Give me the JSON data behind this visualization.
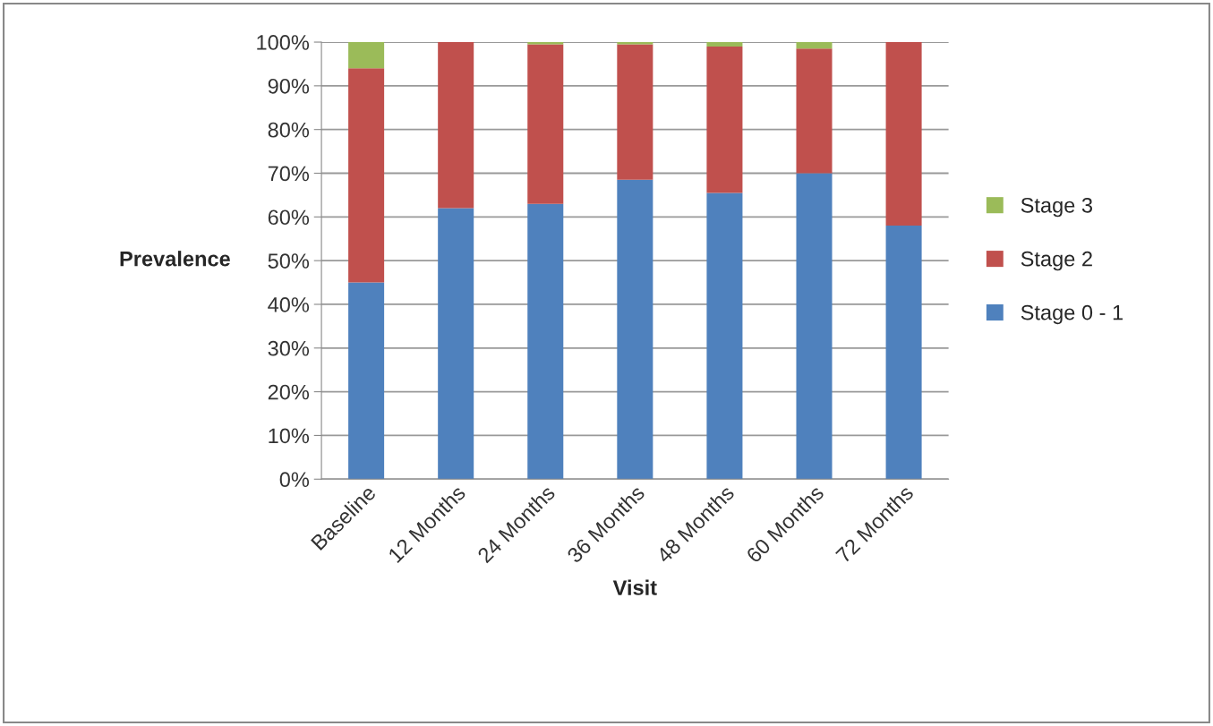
{
  "chart_data": {
    "type": "bar",
    "stacked": true,
    "xlabel": "Visit",
    "ylabel": "Prevalence",
    "categories": [
      "Baseline",
      "12 Months",
      "24 Months",
      "36 Months",
      "48 Months",
      "60 Months",
      "72 Months"
    ],
    "series": [
      {
        "name": "Stage 0 - 1",
        "color": "#4f81bd",
        "values": [
          45,
          62,
          63,
          68.5,
          65.5,
          70,
          58
        ]
      },
      {
        "name": "Stage 2",
        "color": "#c0504d",
        "values": [
          49,
          38,
          36.5,
          31,
          33.5,
          28.5,
          42
        ]
      },
      {
        "name": "Stage 3",
        "color": "#9bbb59",
        "values": [
          6,
          0,
          0.5,
          0.5,
          1,
          1.5,
          0
        ]
      }
    ],
    "ylim": [
      0,
      100
    ],
    "yticks": [
      {
        "value": 0,
        "label": "0%"
      },
      {
        "value": 10,
        "label": "10%"
      },
      {
        "value": 20,
        "label": "20%"
      },
      {
        "value": 30,
        "label": "30%"
      },
      {
        "value": 40,
        "label": "40%"
      },
      {
        "value": 50,
        "label": "50%"
      },
      {
        "value": 60,
        "label": "60%"
      },
      {
        "value": 70,
        "label": "70%"
      },
      {
        "value": 80,
        "label": "80%"
      },
      {
        "value": 90,
        "label": "90%"
      },
      {
        "value": 100,
        "label": "100%"
      }
    ],
    "grid": "y",
    "legend": "right"
  }
}
